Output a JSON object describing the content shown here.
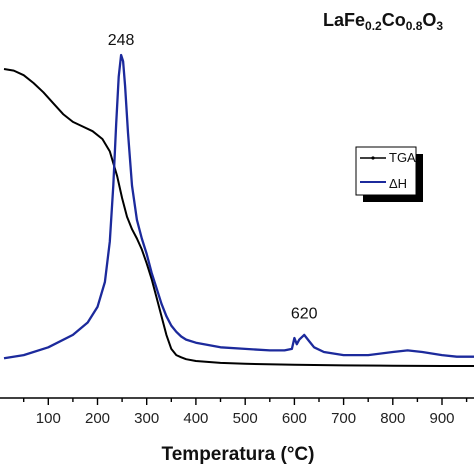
{
  "chart_data": {
    "type": "line",
    "title_parts": {
      "la": "LaFe",
      "fe_sub": "0.2",
      "co": "Co",
      "co_sub": "0.8",
      "o": "O",
      "o_sub": "3"
    },
    "xlabel": "Temperatura (°C)",
    "ylabel": "",
    "xlim": [
      10,
      965
    ],
    "ylim": [
      0,
      1
    ],
    "x_ticks": [
      100,
      200,
      300,
      400,
      500,
      600,
      700,
      800,
      900
    ],
    "grid": false,
    "legend_position": "right",
    "annotations": [
      {
        "text": "248",
        "x": 248,
        "y": 1.02
      },
      {
        "text": "620",
        "x": 620,
        "y": 0.14
      }
    ],
    "series": [
      {
        "name": "TGA",
        "color": "#000000",
        "x": [
          10,
          30,
          50,
          70,
          90,
          110,
          130,
          150,
          170,
          190,
          210,
          225,
          240,
          250,
          260,
          270,
          280,
          290,
          300,
          310,
          320,
          330,
          340,
          350,
          360,
          370,
          380,
          400,
          450,
          500,
          600,
          700,
          800,
          900,
          965
        ],
        "y": [
          0.955,
          0.95,
          0.935,
          0.91,
          0.88,
          0.845,
          0.81,
          0.785,
          0.77,
          0.755,
          0.73,
          0.69,
          0.61,
          0.54,
          0.48,
          0.44,
          0.41,
          0.375,
          0.33,
          0.28,
          0.22,
          0.16,
          0.1,
          0.055,
          0.035,
          0.028,
          0.022,
          0.016,
          0.01,
          0.007,
          0.004,
          0.002,
          0.001,
          0.0,
          0.0
        ]
      },
      {
        "name": "ΔH",
        "color": "#1c2a9c",
        "x": [
          10,
          50,
          100,
          150,
          180,
          200,
          215,
          225,
          232,
          238,
          243,
          248,
          252,
          256,
          262,
          270,
          280,
          290,
          300,
          310,
          320,
          330,
          340,
          350,
          360,
          370,
          380,
          400,
          450,
          500,
          550,
          580,
          595,
          600,
          605,
          610,
          620,
          630,
          640,
          660,
          700,
          750,
          800,
          830,
          860,
          900,
          930,
          965
        ],
        "y": [
          0.025,
          0.035,
          0.06,
          0.1,
          0.14,
          0.19,
          0.27,
          0.4,
          0.58,
          0.78,
          0.93,
          1.0,
          0.98,
          0.9,
          0.75,
          0.58,
          0.47,
          0.41,
          0.36,
          0.3,
          0.25,
          0.2,
          0.16,
          0.13,
          0.11,
          0.095,
          0.085,
          0.075,
          0.06,
          0.055,
          0.05,
          0.05,
          0.055,
          0.09,
          0.07,
          0.085,
          0.1,
          0.08,
          0.06,
          0.045,
          0.035,
          0.035,
          0.045,
          0.05,
          0.045,
          0.035,
          0.03,
          0.03
        ]
      }
    ]
  }
}
